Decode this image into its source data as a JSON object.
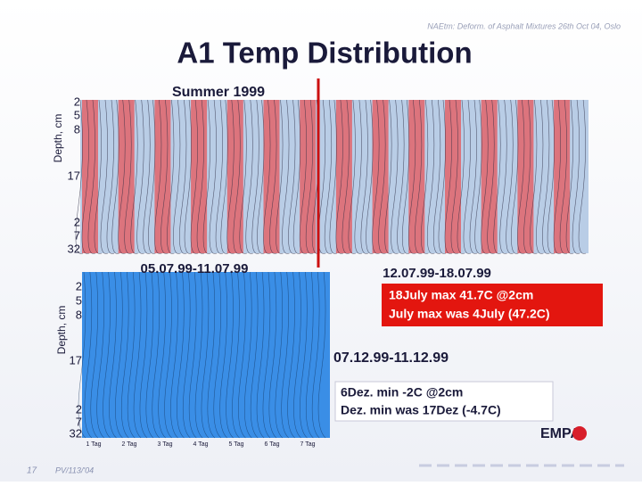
{
  "header": {
    "note": "NAEtm: Deform. of Asphalt Mixtures 26th Oct 04, Oslo",
    "title": "A1 Temp Distribution"
  },
  "summer": {
    "label": "Summer 1999",
    "axis_label": "Depth, cm",
    "depths": [
      "2",
      "5",
      "8",
      "17",
      "2",
      "7",
      "32"
    ],
    "period_1": "05.07.99-11.07.99",
    "period_2": "12.07.99-18.07.99",
    "note_1": "18July  max 41.7C @2cm",
    "note_2": "July max was 4July (47.2C)"
  },
  "winter": {
    "axis_label": "Depth, cm",
    "depths": [
      "2",
      "5",
      "8",
      "17",
      "2",
      "7",
      "32"
    ],
    "days": [
      "1 Tag",
      "2 Tag",
      "3 Tag",
      "4 Tag",
      "5 Tag",
      "6 Tag",
      "7 Tag"
    ],
    "period": "07.12.99-11.12.99",
    "note_1": "6Dez.  min -2C @2cm",
    "note_2": "Dez. min was 17Dez (-4.7C)"
  },
  "footer": {
    "logo": "EMPA",
    "page": "17",
    "ref": "PV/113/'04"
  }
}
